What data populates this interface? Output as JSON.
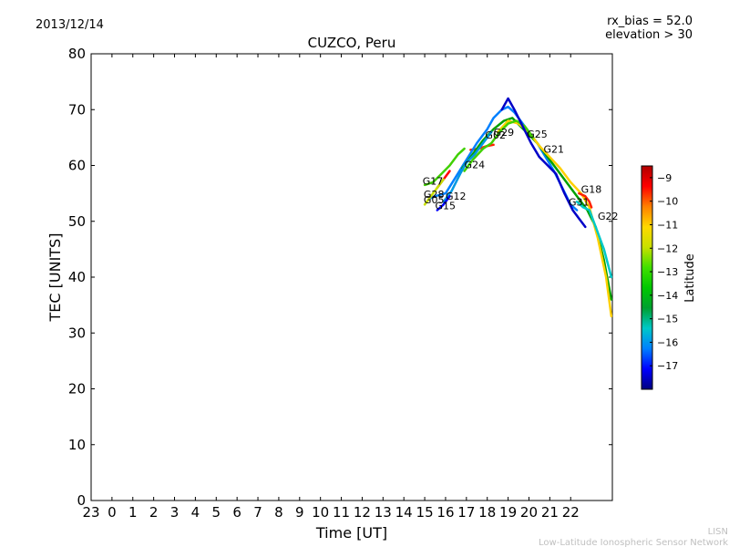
{
  "header": {
    "date": "2013/12/14",
    "rx_bias": "rx_bias = 52.0",
    "elevation": "elevation > 30"
  },
  "footer": {
    "line1": "LISN",
    "line2": "Low-Latitude Ionospheric Sensor Network"
  },
  "colors": {
    "colormap": [
      "#00007f",
      "#0000ff",
      "#0080ff",
      "#00c8c8",
      "#00a030",
      "#00c800",
      "#40e000",
      "#c8e000",
      "#ffd800",
      "#ff8000",
      "#ff0000",
      "#b00000"
    ]
  },
  "chart_data": {
    "type": "line",
    "title": "CUZCO, Peru",
    "xlabel": "Time [UT]",
    "ylabel": "TEC [UNITS]",
    "ylim": [
      0,
      80
    ],
    "xlim": [
      -1,
      24
    ],
    "x_tick_labels": [
      "23",
      "0",
      "1",
      "2",
      "3",
      "4",
      "5",
      "6",
      "7",
      "8",
      "9",
      "10",
      "11",
      "12",
      "13",
      "14",
      "15",
      "16",
      "17",
      "18",
      "19",
      "20",
      "21",
      "22"
    ],
    "y_ticks": [
      0,
      10,
      20,
      30,
      40,
      50,
      60,
      70,
      80
    ],
    "grid": false,
    "colorbar": {
      "label": "Latitude",
      "range": [
        -18,
        -8.5
      ],
      "ticks": [
        "-9",
        "-10",
        "-11",
        "-12",
        "-13",
        "-14",
        "-15",
        "-16",
        "-17"
      ]
    },
    "series": [
      {
        "name": "G02",
        "color": "#ff2000",
        "points": [
          [
            17.2,
            62.8
          ],
          [
            17.6,
            63.0
          ],
          [
            18.0,
            63.5
          ],
          [
            18.3,
            63.7
          ]
        ]
      },
      {
        "name": "G29",
        "color": "#0080ff",
        "points": [
          [
            15.2,
            54.0
          ],
          [
            15.5,
            54.5
          ],
          [
            16.0,
            55.0
          ],
          [
            16.5,
            58.0
          ],
          [
            17.0,
            61.0
          ],
          [
            17.5,
            64.0
          ],
          [
            18.0,
            66.5
          ],
          [
            18.3,
            68.5
          ],
          [
            18.7,
            70.0
          ],
          [
            19.0,
            70.5
          ],
          [
            19.3,
            69.5
          ],
          [
            19.6,
            68.0
          ],
          [
            20.0,
            66.0
          ],
          [
            20.4,
            64.0
          ],
          [
            20.8,
            61.5
          ],
          [
            21.2,
            59.0
          ],
          [
            21.6,
            56.0
          ],
          [
            22.0,
            53.0
          ],
          [
            22.3,
            52.0
          ]
        ]
      },
      {
        "name": "G25",
        "color": "#00a000",
        "points": [
          [
            16.8,
            59.5
          ],
          [
            17.3,
            62.0
          ],
          [
            17.8,
            64.5
          ],
          [
            18.3,
            66.5
          ],
          [
            18.8,
            68.0
          ],
          [
            19.2,
            68.5
          ],
          [
            19.6,
            67.0
          ],
          [
            20.0,
            65.5
          ],
          [
            20.4,
            64.0
          ],
          [
            20.8,
            62.0
          ],
          [
            21.2,
            60.0
          ],
          [
            21.6,
            58.0
          ],
          [
            22.0,
            56.0
          ],
          [
            22.4,
            54.0
          ],
          [
            22.8,
            52.0
          ],
          [
            23.2,
            49.0
          ],
          [
            23.6,
            43.0
          ],
          [
            23.95,
            36.0
          ]
        ]
      },
      {
        "name": "G21",
        "color": "#ffd000",
        "points": [
          [
            18.5,
            66.0
          ],
          [
            19.0,
            68.0
          ],
          [
            19.5,
            67.5
          ],
          [
            20.0,
            66.0
          ],
          [
            20.5,
            63.5
          ],
          [
            21.0,
            61.5
          ],
          [
            21.5,
            59.5
          ],
          [
            22.0,
            57.0
          ],
          [
            22.5,
            55.0
          ],
          [
            22.9,
            52.5
          ],
          [
            23.3,
            47.0
          ],
          [
            23.7,
            40.0
          ],
          [
            23.95,
            33.0
          ]
        ]
      },
      {
        "name": "G24",
        "color": "#40d000",
        "points": [
          [
            16.9,
            59.0
          ],
          [
            17.3,
            61.0
          ],
          [
            17.8,
            63.0
          ],
          [
            18.2,
            64.0
          ],
          [
            18.6,
            66.0
          ],
          [
            19.0,
            67.5
          ],
          [
            19.4,
            68.0
          ],
          [
            19.8,
            67.0
          ],
          [
            20.2,
            65.0
          ]
        ]
      },
      {
        "name": "G17",
        "color": "#40d000",
        "points": [
          [
            15.0,
            56.5
          ],
          [
            15.4,
            57.0
          ],
          [
            15.8,
            58.5
          ],
          [
            16.2,
            60.0
          ],
          [
            16.6,
            62.0
          ],
          [
            16.9,
            63.0
          ]
        ]
      },
      {
        "name": "G28",
        "color": "#ff0000",
        "points": [
          [
            15.6,
            56.0
          ],
          [
            15.9,
            57.5
          ],
          [
            16.2,
            59.0
          ]
        ]
      },
      {
        "name": "G12",
        "color": "#0098e0",
        "points": [
          [
            15.9,
            53.5
          ],
          [
            16.3,
            55.5
          ],
          [
            16.7,
            58.5
          ],
          [
            17.0,
            60.5
          ],
          [
            17.4,
            62.0
          ],
          [
            17.8,
            64.0
          ],
          [
            18.2,
            66.0
          ]
        ]
      },
      {
        "name": "G05",
        "color": "#c8e000",
        "points": [
          [
            15.0,
            53.0
          ],
          [
            15.3,
            54.5
          ],
          [
            15.6,
            56.0
          ],
          [
            15.9,
            57.5
          ]
        ]
      },
      {
        "name": "G15",
        "color": "#0000ff",
        "points": [
          [
            15.6,
            52.0
          ],
          [
            15.9,
            53.0
          ],
          [
            16.2,
            54.5
          ]
        ]
      },
      {
        "name": "G31",
        "color": "#0000c8",
        "points": [
          [
            18.7,
            70.0
          ],
          [
            19.0,
            72.0
          ],
          [
            19.3,
            70.0
          ],
          [
            19.7,
            67.0
          ],
          [
            20.1,
            64.0
          ],
          [
            20.5,
            61.5
          ],
          [
            20.9,
            60.0
          ],
          [
            21.3,
            58.5
          ],
          [
            21.7,
            55.0
          ],
          [
            22.1,
            52.0
          ],
          [
            22.4,
            50.5
          ],
          [
            22.7,
            49.0
          ]
        ]
      },
      {
        "name": "G18",
        "color": "#ff2000",
        "points": [
          [
            22.4,
            55.0
          ],
          [
            22.7,
            54.5
          ],
          [
            22.9,
            53.5
          ],
          [
            23.0,
            52.5
          ]
        ]
      },
      {
        "name": "G22",
        "color": "#00c8c8",
        "points": [
          [
            22.3,
            53.5
          ],
          [
            22.6,
            52.5
          ],
          [
            22.9,
            52.0
          ],
          [
            23.2,
            49.0
          ],
          [
            23.6,
            45.0
          ],
          [
            23.95,
            40.0
          ]
        ]
      }
    ],
    "labels": [
      {
        "text": "G02",
        "x": 17.9,
        "y": 64.8
      },
      {
        "text": "G29",
        "x": 18.3,
        "y": 65.3
      },
      {
        "text": "G25",
        "x": 19.9,
        "y": 65.0
      },
      {
        "text": "G21",
        "x": 20.7,
        "y": 62.3
      },
      {
        "text": "G24",
        "x": 16.9,
        "y": 59.5
      },
      {
        "text": "G17",
        "x": 14.9,
        "y": 56.6
      },
      {
        "text": "G28",
        "x": 14.95,
        "y": 54.2
      },
      {
        "text": "G12",
        "x": 16.0,
        "y": 53.9
      },
      {
        "text": "G05",
        "x": 14.95,
        "y": 53.2
      },
      {
        "text": "G15",
        "x": 15.5,
        "y": 52.2
      },
      {
        "text": "G31",
        "x": 21.9,
        "y": 52.8
      },
      {
        "text": "G18",
        "x": 22.5,
        "y": 55.1
      },
      {
        "text": "G22",
        "x": 23.3,
        "y": 50.3
      }
    ]
  }
}
